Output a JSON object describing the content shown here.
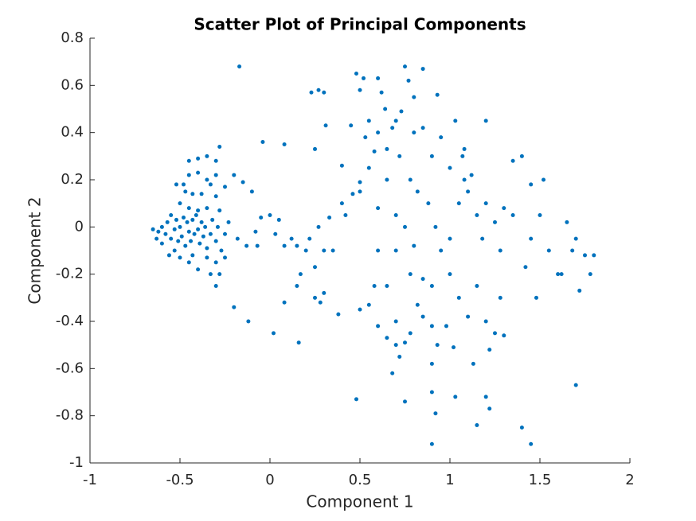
{
  "chart_data": {
    "type": "scatter",
    "title": "Scatter Plot of Principal Components",
    "x_label": "Component 1",
    "y_label": "Component 2",
    "xlim": [
      -1,
      2
    ],
    "ylim": [
      -1,
      0.8
    ],
    "xticks": [
      -1,
      -0.5,
      0,
      0.5,
      1,
      1.5,
      2
    ],
    "yticks": [
      -1,
      -0.8,
      -0.6,
      -0.4,
      -0.2,
      0,
      0.2,
      0.4,
      0.6,
      0.8
    ],
    "series": [
      {
        "color": "#0072bd",
        "x": [
          -0.52,
          -0.48,
          -0.45,
          -0.4,
          -0.45,
          -0.4,
          -0.35,
          -0.3,
          -0.28,
          -0.35,
          -0.33,
          -0.3,
          -0.47,
          -0.43,
          -0.38,
          -0.5,
          -0.45,
          -0.4,
          -0.35,
          -0.28,
          -0.25,
          -0.3,
          -0.65,
          -0.62,
          -0.6,
          -0.58,
          -0.57,
          -0.55,
          -0.55,
          -0.53,
          -0.52,
          -0.51,
          -0.5,
          -0.49,
          -0.48,
          -0.47,
          -0.46,
          -0.45,
          -0.44,
          -0.43,
          -0.42,
          -0.41,
          -0.4,
          -0.39,
          -0.38,
          -0.37,
          -0.36,
          -0.35,
          -0.33,
          -0.32,
          -0.3,
          -0.29,
          -0.27,
          -0.25,
          -0.23,
          -0.53,
          -0.56,
          -0.5,
          -0.45,
          -0.43,
          -0.4,
          -0.35,
          -0.3,
          -0.28,
          -0.33,
          -0.3,
          -0.25,
          -0.6,
          -0.63,
          -0.17,
          -0.15,
          -0.2,
          -0.1,
          -0.04,
          -0.2,
          -0.12,
          0.02,
          -0.18,
          -0.13,
          -0.08,
          -0.05,
          -0.07,
          0.0,
          0.03,
          0.05,
          0.08,
          0.12,
          0.15,
          0.08,
          0.08,
          0.16,
          0.15,
          0.17,
          0.2,
          0.22,
          0.25,
          0.27,
          0.3,
          0.33,
          0.35,
          0.25,
          0.28,
          0.3,
          0.23,
          0.27,
          0.3,
          0.31,
          0.25,
          0.4,
          0.4,
          0.38,
          0.42,
          0.46,
          0.5,
          0.48,
          0.52,
          0.5,
          0.55,
          0.45,
          0.6,
          0.62,
          0.64,
          0.7,
          0.75,
          0.77,
          0.85,
          0.8,
          0.73,
          0.68,
          0.6,
          0.53,
          0.58,
          0.65,
          0.72,
          0.8,
          0.85,
          0.93,
          0.9,
          0.95,
          1.0,
          1.07,
          1.03,
          1.08,
          1.1,
          1.12,
          1.05,
          1.15,
          1.2,
          1.25,
          1.3,
          1.18,
          1.28,
          1.35,
          1.4,
          1.45,
          1.52,
          1.5,
          1.45,
          1.55,
          1.6,
          1.65,
          1.68,
          1.7,
          1.75,
          1.78,
          1.8,
          1.72,
          1.7,
          0.55,
          0.5,
          0.6,
          0.65,
          0.7,
          0.75,
          0.78,
          0.82,
          0.88,
          0.92,
          0.95,
          1.0,
          1.0,
          0.6,
          0.7,
          0.8,
          0.85,
          0.78,
          0.9,
          0.58,
          0.65,
          0.5,
          0.55,
          0.6,
          0.7,
          0.65,
          0.7,
          0.75,
          0.78,
          0.82,
          0.85,
          0.9,
          0.93,
          0.98,
          1.02,
          1.05,
          1.1,
          1.13,
          1.15,
          1.2,
          1.22,
          1.25,
          1.28,
          1.3,
          1.22,
          1.2,
          1.15,
          1.03,
          0.9,
          0.9,
          0.92,
          0.9,
          0.75,
          0.72,
          0.68,
          0.48,
          1.4,
          1.45,
          1.08,
          1.2,
          1.35,
          1.62,
          1.48,
          1.42
        ],
        "y": [
          0.18,
          0.18,
          0.22,
          0.23,
          0.28,
          0.29,
          0.3,
          0.28,
          0.34,
          0.2,
          0.18,
          0.13,
          0.15,
          0.14,
          0.14,
          0.1,
          0.08,
          0.07,
          0.08,
          0.07,
          0.17,
          0.22,
          -0.01,
          -0.02,
          0.0,
          -0.03,
          0.02,
          -0.05,
          0.05,
          -0.01,
          0.03,
          -0.06,
          0.0,
          -0.04,
          0.04,
          -0.08,
          0.02,
          -0.02,
          -0.06,
          0.03,
          -0.03,
          0.05,
          -0.01,
          -0.07,
          0.02,
          -0.04,
          0.0,
          -0.09,
          -0.03,
          0.03,
          -0.06,
          0.0,
          -0.1,
          -0.03,
          0.02,
          -0.1,
          -0.12,
          -0.13,
          -0.15,
          -0.12,
          -0.18,
          -0.13,
          -0.15,
          -0.2,
          -0.2,
          -0.25,
          -0.13,
          -0.07,
          -0.05,
          0.68,
          0.19,
          0.22,
          0.15,
          0.36,
          -0.34,
          -0.4,
          -0.45,
          -0.05,
          -0.08,
          -0.02,
          0.04,
          -0.08,
          0.05,
          -0.03,
          0.03,
          -0.08,
          -0.05,
          -0.08,
          0.35,
          -0.32,
          -0.49,
          -0.25,
          -0.2,
          -0.1,
          -0.05,
          -0.17,
          0.0,
          -0.1,
          0.04,
          -0.1,
          -0.3,
          -0.32,
          -0.28,
          0.57,
          0.58,
          0.57,
          0.43,
          0.33,
          0.1,
          0.26,
          -0.37,
          0.05,
          0.14,
          0.19,
          0.65,
          0.63,
          0.58,
          0.45,
          0.43,
          0.63,
          0.57,
          0.5,
          0.45,
          0.68,
          0.62,
          0.67,
          0.55,
          0.49,
          0.42,
          0.4,
          0.38,
          0.32,
          0.33,
          0.3,
          0.4,
          0.42,
          0.56,
          0.3,
          0.38,
          0.25,
          0.3,
          0.45,
          0.2,
          0.15,
          0.22,
          0.1,
          0.05,
          0.1,
          0.02,
          0.08,
          -0.05,
          -0.1,
          0.05,
          0.3,
          0.18,
          0.2,
          0.05,
          -0.05,
          -0.1,
          -0.2,
          0.02,
          -0.1,
          -0.05,
          -0.12,
          -0.2,
          -0.12,
          -0.27,
          -0.67,
          0.25,
          0.15,
          0.08,
          0.2,
          0.05,
          0.0,
          0.2,
          0.15,
          0.1,
          0.0,
          -0.1,
          -0.05,
          -0.2,
          -0.1,
          -0.1,
          -0.08,
          -0.22,
          -0.2,
          -0.25,
          -0.25,
          -0.25,
          -0.35,
          -0.33,
          -0.42,
          -0.4,
          -0.47,
          -0.5,
          -0.49,
          -0.45,
          -0.33,
          -0.38,
          -0.42,
          -0.5,
          -0.42,
          -0.51,
          -0.3,
          -0.38,
          -0.58,
          -0.25,
          -0.4,
          -0.52,
          -0.45,
          -0.3,
          -0.46,
          -0.77,
          -0.72,
          -0.84,
          -0.72,
          -0.7,
          -0.58,
          -0.79,
          -0.92,
          -0.74,
          -0.55,
          -0.62,
          -0.73,
          -0.85,
          -0.92,
          0.33,
          0.45,
          0.28,
          -0.2,
          -0.3,
          -0.17
        ]
      }
    ]
  }
}
